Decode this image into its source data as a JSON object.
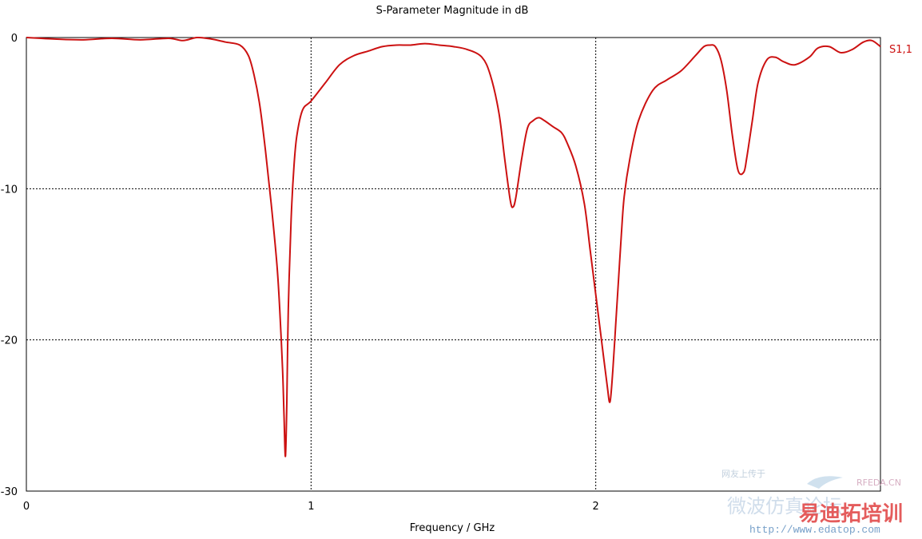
{
  "chart_data": {
    "type": "line",
    "title": "S-Parameter Magnitude in dB",
    "xlabel": "Frequency / GHz",
    "ylabel": "",
    "xlim": [
      0,
      3
    ],
    "ylim": [
      -30,
      0
    ],
    "x_ticks": [
      "0",
      "1",
      "2"
    ],
    "y_ticks": [
      "0",
      "-10",
      "-20",
      "-30"
    ],
    "grid": true,
    "legend_position": "right",
    "series": [
      {
        "name": "S1,1",
        "color": "#cc1111",
        "x": [
          0,
          0.1,
          0.2,
          0.3,
          0.4,
          0.5,
          0.55,
          0.6,
          0.65,
          0.7,
          0.75,
          0.78,
          0.8,
          0.82,
          0.84,
          0.86,
          0.88,
          0.89,
          0.9,
          0.905,
          0.91,
          0.915,
          0.92,
          0.93,
          0.94,
          0.95,
          0.97,
          1.0,
          1.05,
          1.1,
          1.15,
          1.2,
          1.25,
          1.3,
          1.35,
          1.4,
          1.45,
          1.5,
          1.55,
          1.6,
          1.63,
          1.66,
          1.68,
          1.7,
          1.71,
          1.72,
          1.74,
          1.76,
          1.78,
          1.8,
          1.82,
          1.85,
          1.88,
          1.9,
          1.93,
          1.96,
          1.98,
          2.0,
          2.02,
          2.04,
          2.05,
          2.06,
          2.07,
          2.08,
          2.09,
          2.1,
          2.12,
          2.15,
          2.2,
          2.25,
          2.3,
          2.35,
          2.38,
          2.4,
          2.42,
          2.44,
          2.46,
          2.48,
          2.5,
          2.52,
          2.53,
          2.55,
          2.57,
          2.6,
          2.63,
          2.66,
          2.7,
          2.75,
          2.78,
          2.82,
          2.86,
          2.9,
          2.94,
          2.97,
          3.0
        ],
        "values": [
          0,
          -0.1,
          -0.15,
          -0.05,
          -0.15,
          -0.05,
          -0.2,
          0,
          -0.1,
          -0.3,
          -0.5,
          -1.2,
          -2.5,
          -4.5,
          -7.5,
          -11,
          -15,
          -18,
          -22,
          -25,
          -27.7,
          -24,
          -18,
          -12,
          -8.5,
          -6.5,
          -4.8,
          -4.2,
          -3.0,
          -1.8,
          -1.2,
          -0.9,
          -0.6,
          -0.5,
          -0.5,
          -0.4,
          -0.5,
          -0.6,
          -0.8,
          -1.3,
          -2.5,
          -5,
          -8,
          -10.8,
          -11.2,
          -10.5,
          -8,
          -6.0,
          -5.5,
          -5.3,
          -5.5,
          -5.9,
          -6.3,
          -7,
          -8.5,
          -11,
          -14,
          -17,
          -20,
          -23,
          -24.1,
          -22,
          -19,
          -16,
          -13,
          -10.5,
          -8,
          -5.5,
          -3.5,
          -2.8,
          -2.2,
          -1.2,
          -0.6,
          -0.5,
          -0.6,
          -1.5,
          -3.5,
          -6.5,
          -8.8,
          -8.9,
          -8,
          -5.5,
          -3,
          -1.5,
          -1.3,
          -1.6,
          -1.8,
          -1.3,
          -0.7,
          -0.6,
          -1.0,
          -0.8,
          -0.3,
          -0.2,
          -0.6
        ]
      }
    ]
  },
  "watermark": {
    "site_tag": "RFEDA.CN",
    "brand": "易迪拓培训",
    "url": "http://www.edatop.com",
    "faint_line1": "网友上传于",
    "faint_line2": "微波仿真论坛"
  }
}
